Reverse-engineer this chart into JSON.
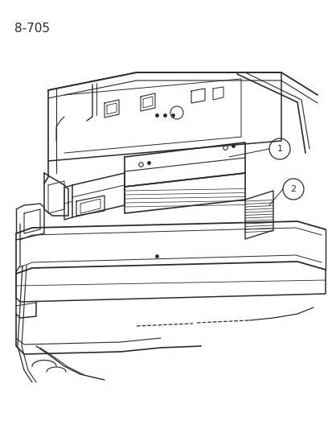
{
  "title": "8-705",
  "background_color": "#ffffff",
  "line_color": "#2a2a2a",
  "label1": "1",
  "label2": "2",
  "figsize": [
    4.14,
    5.33
  ],
  "dpi": 100,
  "title_fontsize": 11,
  "callout_fontsize": 8
}
